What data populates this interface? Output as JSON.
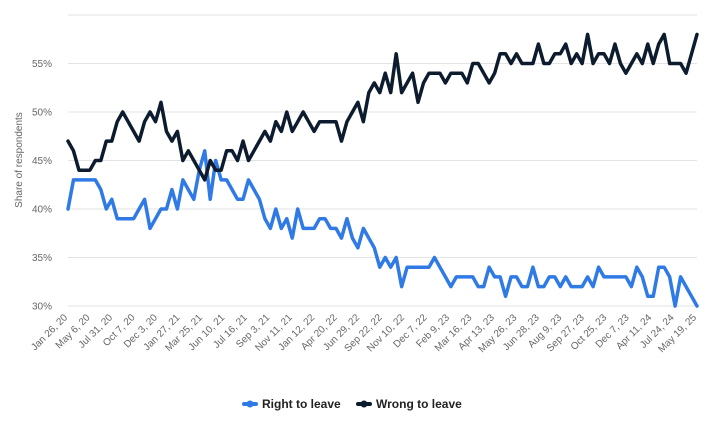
{
  "chart_data": {
    "type": "line",
    "ylabel": "Share of respondents",
    "xlabel": "",
    "ylim": [
      30,
      60
    ],
    "y_ticks": [
      30,
      35,
      40,
      45,
      50,
      55
    ],
    "y_tick_labels": [
      "30%",
      "35%",
      "40%",
      "45%",
      "50%",
      "55%"
    ],
    "grid": true,
    "legend_position": "bottom",
    "x_tick_labels": [
      "Jan 26, 20",
      "May 6, 20",
      "Jul 31, 20",
      "Oct 7, 20",
      "Dec 3, 20",
      "Jan 27, 21",
      "Mar 25, 21",
      "Jun 10, 21",
      "Jul 16, 21",
      "Sep 3, 21",
      "Nov 11, 21",
      "Jan 12, 22",
      "Apr 20, 22",
      "Jun 29, 22",
      "Sep 22, 22",
      "Nov 10, 22",
      "Dec 7, 22",
      "Feb 9, 23",
      "Mar 16, 23",
      "Apr 13, 23",
      "May 26, 23",
      "Jun 28, 23",
      "Aug 9, 23",
      "Sep 27, 23",
      "Oct 25, 23",
      "Dec 7, 23",
      "Apr 11, 24",
      "Jul 24, 24",
      "May 19, 25"
    ],
    "series": [
      {
        "name": "Right to leave",
        "color": "#2f7ae5",
        "values": [
          40,
          43,
          43,
          43,
          43,
          43,
          42,
          40,
          41,
          39,
          39,
          39,
          39,
          40,
          41,
          38,
          39,
          40,
          40,
          42,
          40,
          43,
          42,
          41,
          44,
          46,
          41,
          45,
          43,
          43,
          42,
          41,
          41,
          43,
          42,
          41,
          39,
          38,
          40,
          38,
          39,
          37,
          40,
          38,
          38,
          38,
          39,
          39,
          38,
          38,
          37,
          39,
          37,
          36,
          38,
          37,
          36,
          34,
          35,
          34,
          35,
          32,
          34,
          34,
          34,
          34,
          34,
          35,
          34,
          33,
          32,
          33,
          33,
          33,
          33,
          32,
          32,
          34,
          33,
          33,
          31,
          33,
          33,
          32,
          32,
          34,
          32,
          32,
          33,
          33,
          32,
          33,
          32,
          32,
          32,
          33,
          32,
          34,
          33,
          33,
          33,
          33,
          33,
          32,
          34,
          33,
          31,
          31,
          34,
          34,
          33,
          30,
          33,
          32,
          31,
          30
        ]
      },
      {
        "name": "Wrong to leave",
        "color": "#0d1b2e",
        "values": [
          47,
          46,
          44,
          44,
          44,
          45,
          45,
          47,
          47,
          49,
          50,
          49,
          48,
          47,
          49,
          50,
          49,
          51,
          48,
          47,
          48,
          45,
          46,
          45,
          44,
          43,
          45,
          44,
          44,
          46,
          46,
          45,
          47,
          45,
          46,
          47,
          48,
          47,
          49,
          48,
          50,
          48,
          49,
          50,
          49,
          48,
          49,
          49,
          49,
          49,
          47,
          49,
          50,
          51,
          49,
          52,
          53,
          52,
          54,
          52,
          56,
          52,
          53,
          54,
          51,
          53,
          54,
          54,
          54,
          53,
          54,
          54,
          54,
          53,
          55,
          55,
          54,
          53,
          54,
          56,
          56,
          55,
          56,
          55,
          55,
          55,
          57,
          55,
          55,
          56,
          56,
          57,
          55,
          56,
          55,
          58,
          55,
          56,
          56,
          55,
          57,
          55,
          54,
          55,
          56,
          55,
          57,
          55,
          57,
          58,
          55,
          55,
          55,
          54,
          56,
          58
        ]
      }
    ]
  }
}
